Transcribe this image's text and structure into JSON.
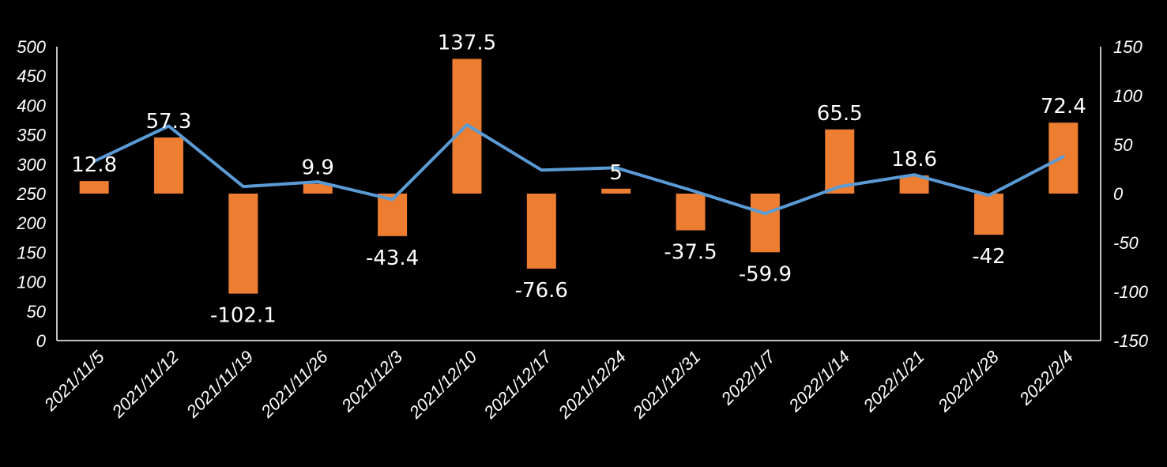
{
  "chart_data": {
    "type": "bar",
    "categories": [
      "2021/11/5",
      "2021/11/12",
      "2021/11/19",
      "2021/11/26",
      "2021/12/3",
      "2021/12/10",
      "2021/12/17",
      "2021/12/24",
      "2021/12/31",
      "2022/1/7",
      "2022/1/14",
      "2022/1/21",
      "2022/1/28",
      "2022/2/4"
    ],
    "series": [
      {
        "type": "bar",
        "axis": "right",
        "color": "#ED7D31",
        "values": [
          12.8,
          57.3,
          -102.1,
          9.9,
          -43.4,
          137.5,
          -76.6,
          5,
          -37.5,
          -59.9,
          65.5,
          18.6,
          -42,
          72.4
        ],
        "labels": [
          "12.8",
          "57.3",
          "-102.1",
          "9.9",
          "-43.4",
          "137.5",
          "-76.6",
          "5",
          "-37.5",
          "-59.9",
          "65.5",
          "18.6",
          "-42",
          "72.4"
        ]
      },
      {
        "type": "line",
        "axis": "left",
        "color": "#5B9BD5",
        "values": [
          305,
          365,
          262,
          270,
          240,
          367,
          290,
          294,
          256,
          216,
          262,
          282,
          247,
          313
        ]
      }
    ],
    "y_left": {
      "min": 0,
      "max": 500,
      "ticks": [
        "0",
        "50",
        "100",
        "150",
        "200",
        "250",
        "300",
        "350",
        "400",
        "450",
        "500"
      ]
    },
    "y_right": {
      "min": -150,
      "max": 150,
      "ticks": [
        "-150",
        "-100",
        "-50",
        "0",
        "50",
        "100",
        "150"
      ]
    },
    "title": "",
    "xlabel": "",
    "ylabel": "",
    "grid": false,
    "legend": "none",
    "background": "#000000",
    "axis_color": "#ffffff"
  }
}
